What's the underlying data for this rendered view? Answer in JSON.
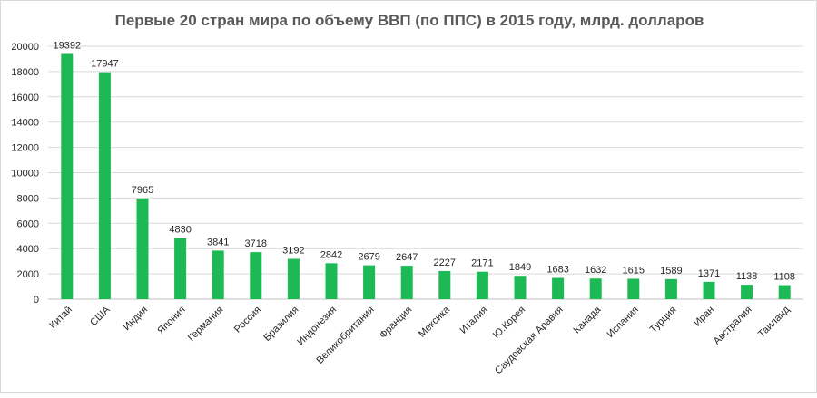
{
  "chart_data": {
    "type": "bar",
    "title": "Первые 20 стран мира по  объему ВВП (по ППС) в 2015 году, млрд. долларов",
    "categories": [
      "Китай",
      "США",
      "Индия",
      "Япония",
      "Германия",
      "Россия",
      "Бразилия",
      "Индонезия",
      "Великобритания",
      "Франция",
      "Мексика",
      "Италия",
      "Ю.Корея",
      "Саудовская Аравия",
      "Канада",
      "Испания",
      "Турция",
      "Иран",
      "Австралия",
      "Таиланд"
    ],
    "values": [
      19392,
      17947,
      7965,
      4830,
      3841,
      3718,
      3192,
      2842,
      2679,
      2647,
      2227,
      2171,
      1849,
      1683,
      1632,
      1615,
      1589,
      1371,
      1138,
      1108
    ],
    "data_labels": [
      "19392",
      "17947",
      "7965",
      "4830",
      "3841",
      "3718",
      "3192",
      "2842",
      "2679",
      "2647",
      "2227",
      "2171",
      "1849",
      "1683",
      "1632",
      "1615",
      "1589",
      "1371",
      "1138",
      "1108"
    ],
    "yticks": [
      "0",
      "2000",
      "4000",
      "6000",
      "8000",
      "10000",
      "12000",
      "14000",
      "16000",
      "18000",
      "20000"
    ],
    "ylim": [
      0,
      20000
    ],
    "grid": true,
    "legend": "none",
    "bar_color": "#1db954"
  }
}
